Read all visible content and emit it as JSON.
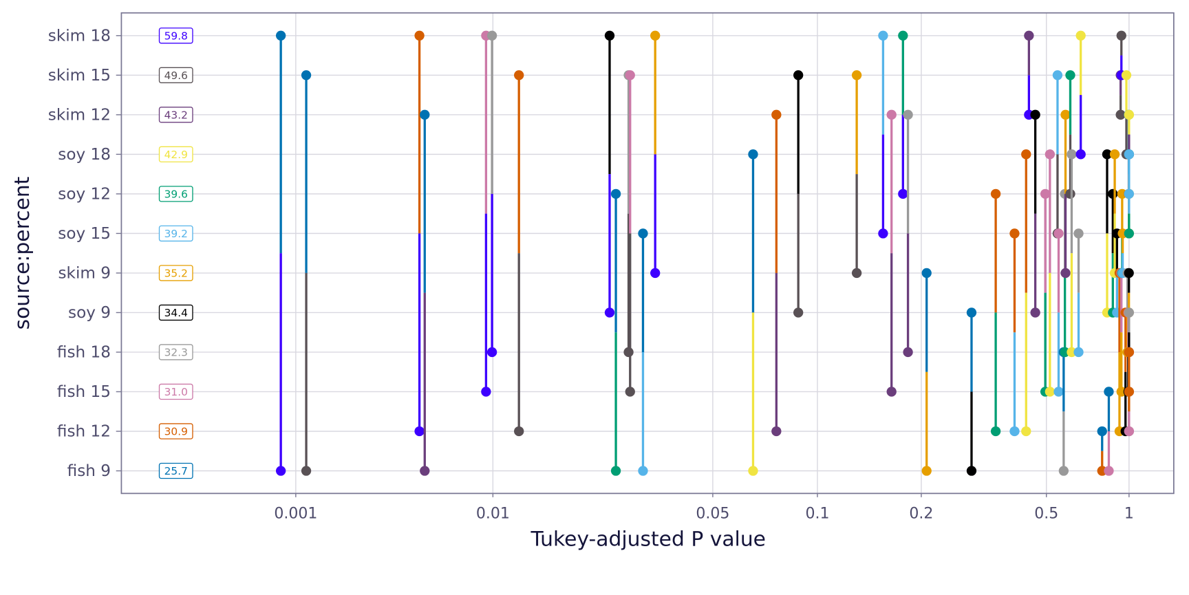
{
  "chart_data": {
    "type": "scatter",
    "subtype": "pairwise-p-value-plot",
    "xlabel": "Tukey-adjusted P value",
    "ylabel": "source:percent",
    "x_scale": "p-value transform",
    "x_ticks": [
      0.001,
      0.01,
      0.05,
      0.1,
      0.2,
      0.5,
      1
    ],
    "x_tick_labels": [
      "0.001",
      "0.01",
      "0.05",
      "0.1",
      "0.2",
      "0.5",
      "1"
    ],
    "grid": true,
    "levels": [
      {
        "label": "skim 18",
        "mean": "59.8",
        "color": "#3D00FF"
      },
      {
        "label": "skim 15",
        "mean": "49.6",
        "color": "#595155"
      },
      {
        "label": "skim 12",
        "mean": "43.2",
        "color": "#6B3E7C"
      },
      {
        "label": "soy 18",
        "mean": "42.9",
        "color": "#F0E442"
      },
      {
        "label": "soy 12",
        "mean": "39.6",
        "color": "#009E73"
      },
      {
        "label": "soy 15",
        "mean": "39.2",
        "color": "#56B4E9"
      },
      {
        "label": "skim 9",
        "mean": "35.2",
        "color": "#E69F00"
      },
      {
        "label": "soy 9",
        "mean": "34.4",
        "color": "#000000"
      },
      {
        "label": "fish 18",
        "mean": "32.3",
        "color": "#999999"
      },
      {
        "label": "fish 15",
        "mean": "31.0",
        "color": "#CC79A7"
      },
      {
        "label": "fish 12",
        "mean": "30.9",
        "color": "#D55E00"
      },
      {
        "label": "fish 9",
        "mean": "25.7",
        "color": "#0072B2"
      }
    ],
    "pairs": [
      {
        "a": "skim 18",
        "b": "fish 9",
        "p": 0.00084
      },
      {
        "a": "skim 15",
        "b": "fish 9",
        "p": 0.00113
      },
      {
        "a": "skim 18",
        "b": "fish 12",
        "p": 0.00424
      },
      {
        "a": "skim 12",
        "b": "fish 9",
        "p": 0.00451
      },
      {
        "a": "skim 18",
        "b": "fish 15",
        "p": 0.00923
      },
      {
        "a": "skim 18",
        "b": "fish 18",
        "p": 0.0099
      },
      {
        "a": "skim 15",
        "b": "fish 12",
        "p": 0.0121
      },
      {
        "a": "skim 18",
        "b": "soy 9",
        "p": 0.0235
      },
      {
        "a": "soy 12",
        "b": "fish 9",
        "p": 0.0246
      },
      {
        "a": "skim 15",
        "b": "fish 18",
        "p": 0.027
      },
      {
        "a": "skim 15",
        "b": "fish 15",
        "p": 0.0273
      },
      {
        "a": "soy 15",
        "b": "fish 9",
        "p": 0.03
      },
      {
        "a": "skim 18",
        "b": "skim 9",
        "p": 0.0328
      },
      {
        "a": "soy 18",
        "b": "fish 9",
        "p": 0.0653
      },
      {
        "a": "skim 12",
        "b": "fish 12",
        "p": 0.0762
      },
      {
        "a": "skim 15",
        "b": "soy 9",
        "p": 0.0881
      },
      {
        "a": "skim 15",
        "b": "skim 9",
        "p": 0.13
      },
      {
        "a": "skim 18",
        "b": "soy 15",
        "p": 0.155
      },
      {
        "a": "skim 12",
        "b": "fish 15",
        "p": 0.164
      },
      {
        "a": "skim 18",
        "b": "soy 12",
        "p": 0.177
      },
      {
        "a": "skim 12",
        "b": "fish 18",
        "p": 0.183
      },
      {
        "a": "skim 9",
        "b": "fish 9",
        "p": 0.208
      },
      {
        "a": "soy 9",
        "b": "fish 9",
        "p": 0.289
      },
      {
        "a": "soy 12",
        "b": "fish 12",
        "p": 0.345
      },
      {
        "a": "soy 15",
        "b": "fish 12",
        "p": 0.396
      },
      {
        "a": "soy 18",
        "b": "fish 12",
        "p": 0.431
      },
      {
        "a": "skim 18",
        "b": "skim 12",
        "p": 0.44
      },
      {
        "a": "skim 12",
        "b": "soy 9",
        "p": 0.461
      },
      {
        "a": "soy 12",
        "b": "fish 15",
        "p": 0.496
      },
      {
        "a": "soy 18",
        "b": "fish 15",
        "p": 0.515
      },
      {
        "a": "skim 15",
        "b": "soy 15",
        "p": 0.549
      },
      {
        "a": "soy 15",
        "b": "fish 15",
        "p": 0.554
      },
      {
        "a": "fish 18",
        "b": "fish 9",
        "p": 0.578
      },
      {
        "a": "soy 12",
        "b": "fish 18",
        "p": 0.584
      },
      {
        "a": "skim 12",
        "b": "skim 9",
        "p": 0.587
      },
      {
        "a": "skim 15",
        "b": "soy 12",
        "p": 0.611
      },
      {
        "a": "soy 18",
        "b": "fish 18",
        "p": 0.618
      },
      {
        "a": "soy 15",
        "b": "fish 18",
        "p": 0.655
      },
      {
        "a": "skim 18",
        "b": "soy 18",
        "p": 0.667
      },
      {
        "a": "fish 12",
        "b": "fish 9",
        "p": 0.798
      },
      {
        "a": "soy 18",
        "b": "soy 9",
        "p": 0.832
      },
      {
        "a": "fish 15",
        "b": "fish 9",
        "p": 0.844
      },
      {
        "a": "soy 12",
        "b": "soy 9",
        "p": 0.873
      },
      {
        "a": "soy 18",
        "b": "skim 9",
        "p": 0.887
      },
      {
        "a": "soy 15",
        "b": "soy 9",
        "p": 0.904
      },
      {
        "a": "skim 9",
        "b": "fish 12",
        "p": 0.923
      },
      {
        "a": "skim 15",
        "b": "skim 12",
        "p": 0.932
      },
      {
        "a": "skim 18",
        "b": "skim 15",
        "p": 0.938
      },
      {
        "a": "skim 9",
        "b": "fish 15",
        "p": 0.938
      },
      {
        "a": "soy 12",
        "b": "skim 9",
        "p": 0.944
      },
      {
        "a": "soy 15",
        "b": "skim 9",
        "p": 0.948
      },
      {
        "a": "soy 9",
        "b": "fish 12",
        "p": 0.971
      },
      {
        "a": "skim 15",
        "b": "soy 18",
        "p": 0.978
      },
      {
        "a": "skim 9",
        "b": "fish 18",
        "p": 0.987
      },
      {
        "a": "soy 9",
        "b": "fish 15",
        "p": 0.994
      },
      {
        "a": "skim 12",
        "b": "soy 12",
        "p": 0.998
      },
      {
        "a": "skim 12",
        "b": "soy 15",
        "p": 0.999
      },
      {
        "a": "skim 9",
        "b": "soy 9",
        "p": 0.999
      },
      {
        "a": "skim 12",
        "b": "soy 18",
        "p": 1.0
      },
      {
        "a": "soy 18",
        "b": "soy 12",
        "p": 1.0
      },
      {
        "a": "soy 18",
        "b": "soy 15",
        "p": 1.0
      },
      {
        "a": "soy 12",
        "b": "soy 15",
        "p": 1.0
      },
      {
        "a": "soy 9",
        "b": "fish 18",
        "p": 1.0
      },
      {
        "a": "fish 18",
        "b": "fish 15",
        "p": 1.0
      },
      {
        "a": "fish 18",
        "b": "fish 12",
        "p": 1.0
      },
      {
        "a": "fish 15",
        "b": "fish 12",
        "p": 1.0
      }
    ]
  }
}
